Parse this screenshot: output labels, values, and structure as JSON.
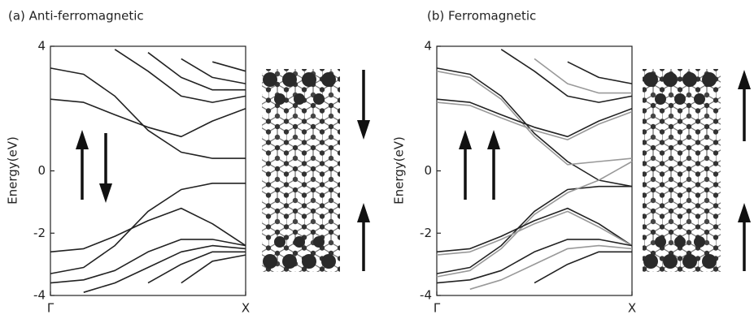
{
  "chart_data": [
    {
      "type": "line",
      "title": "(a) Anti-ferromagnetic",
      "y_label": "Energy(eV)",
      "x": [
        0,
        0.17,
        0.33,
        0.5,
        0.67,
        0.83,
        1
      ],
      "xlim": [
        0,
        1
      ],
      "xticks": [
        {
          "value": 0,
          "label": "Γ"
        },
        {
          "value": 1,
          "label": "X"
        }
      ],
      "ylim": [
        -4,
        4
      ],
      "yticks": [
        -4,
        -2,
        0,
        4
      ],
      "series": [
        {
          "color": "#222222",
          "values": [
            3.3,
            3.1,
            2.4,
            1.3,
            0.6,
            0.4,
            0.4
          ]
        },
        {
          "color": "#222222",
          "values": [
            2.3,
            2.2,
            1.8,
            1.4,
            1.1,
            1.6,
            2.0
          ]
        },
        {
          "color": "#222222",
          "values": [
            null,
            null,
            3.9,
            3.2,
            2.4,
            2.2,
            2.4
          ]
        },
        {
          "color": "#222222",
          "values": [
            null,
            null,
            null,
            3.8,
            3.0,
            2.6,
            2.6
          ]
        },
        {
          "color": "#222222",
          "values": [
            null,
            null,
            null,
            null,
            3.6,
            3.0,
            2.8
          ]
        },
        {
          "color": "#222222",
          "values": [
            null,
            null,
            null,
            null,
            null,
            3.5,
            3.2
          ]
        },
        {
          "color": "#222222",
          "values": [
            -3.3,
            -3.1,
            -2.4,
            -1.3,
            -0.6,
            -0.4,
            -0.4
          ]
        },
        {
          "color": "#222222",
          "values": [
            -2.6,
            -2.5,
            -2.1,
            -1.6,
            -1.2,
            -1.7,
            -2.4
          ]
        },
        {
          "color": "#222222",
          "values": [
            -3.6,
            -3.5,
            -3.2,
            -2.6,
            -2.2,
            -2.2,
            -2.4
          ]
        },
        {
          "color": "#222222",
          "values": [
            null,
            -3.9,
            -3.6,
            -3.1,
            -2.6,
            -2.4,
            -2.5
          ]
        },
        {
          "color": "#222222",
          "values": [
            null,
            null,
            null,
            -3.6,
            -3.0,
            -2.6,
            -2.6
          ]
        },
        {
          "color": "#222222",
          "values": [
            null,
            null,
            null,
            null,
            -3.6,
            -2.9,
            -2.7
          ]
        }
      ]
    },
    {
      "type": "line",
      "title": "(b) Ferromagnetic",
      "y_label": "Energy(eV)",
      "x": [
        0,
        0.17,
        0.33,
        0.5,
        0.67,
        0.83,
        1
      ],
      "xlim": [
        0,
        1
      ],
      "xticks": [
        {
          "value": 0,
          "label": "Γ"
        },
        {
          "value": 1,
          "label": "X"
        }
      ],
      "ylim": [
        -4,
        4
      ],
      "yticks": [
        -4,
        -2,
        0,
        4
      ],
      "series": [
        {
          "color": "#222222",
          "values": [
            3.3,
            3.1,
            2.4,
            1.2,
            0.3,
            -0.3,
            -0.5
          ]
        },
        {
          "color": "#999999",
          "values": [
            3.2,
            3.0,
            2.3,
            1.1,
            0.2,
            0.3,
            0.4
          ]
        },
        {
          "color": "#222222",
          "values": [
            2.3,
            2.2,
            1.8,
            1.4,
            1.1,
            1.6,
            2.0
          ]
        },
        {
          "color": "#999999",
          "values": [
            2.2,
            2.1,
            1.7,
            1.3,
            1.0,
            1.5,
            1.9
          ]
        },
        {
          "color": "#222222",
          "values": [
            null,
            null,
            3.9,
            3.2,
            2.4,
            2.2,
            2.4
          ]
        },
        {
          "color": "#999999",
          "values": [
            null,
            null,
            null,
            3.6,
            2.8,
            2.5,
            2.5
          ]
        },
        {
          "color": "#222222",
          "values": [
            null,
            null,
            null,
            null,
            3.5,
            3.0,
            2.8
          ]
        },
        {
          "color": "#222222",
          "values": [
            -3.3,
            -3.1,
            -2.4,
            -1.3,
            -0.6,
            -0.5,
            -0.5
          ]
        },
        {
          "color": "#999999",
          "values": [
            -3.4,
            -3.2,
            -2.5,
            -1.4,
            -0.7,
            -0.3,
            0.3
          ]
        },
        {
          "color": "#222222",
          "values": [
            -2.6,
            -2.5,
            -2.1,
            -1.6,
            -1.2,
            -1.7,
            -2.4
          ]
        },
        {
          "color": "#999999",
          "values": [
            -2.7,
            -2.6,
            -2.2,
            -1.7,
            -1.3,
            -1.8,
            -2.4
          ]
        },
        {
          "color": "#222222",
          "values": [
            -3.6,
            -3.5,
            -3.2,
            -2.6,
            -2.2,
            -2.2,
            -2.4
          ]
        },
        {
          "color": "#999999",
          "values": [
            null,
            -3.8,
            -3.5,
            -3.0,
            -2.5,
            -2.4,
            -2.5
          ]
        },
        {
          "color": "#222222",
          "values": [
            null,
            null,
            null,
            -3.6,
            -3.0,
            -2.6,
            -2.6
          ]
        }
      ]
    }
  ]
}
